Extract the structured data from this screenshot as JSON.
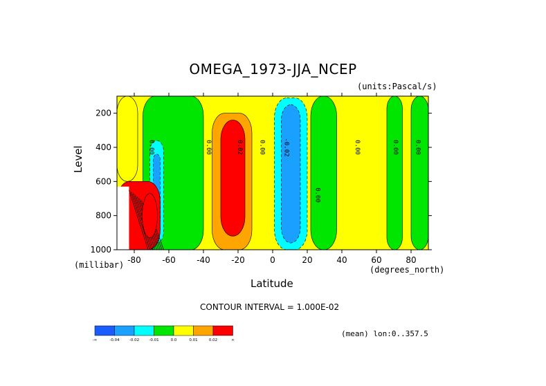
{
  "chart_data": {
    "type": "heatmap",
    "title": "OMEGA_1973-JJA_NCEP",
    "units": "(units:Pascal/s)",
    "ylabel": "Level",
    "yunit": "(millibar)",
    "xlabel": "Latitude",
    "xunit": "(degrees_north)",
    "contour_interval": "CONTOUR INTERVAL = 1.000E-02",
    "mean_note": "(mean) lon:0..357.5",
    "xlim": [
      -90,
      90
    ],
    "ylim": [
      1000,
      100
    ],
    "xticks": [
      -80,
      -60,
      -40,
      -20,
      0,
      20,
      40,
      60,
      80
    ],
    "xtick_labels": [
      "-80",
      "-60",
      "-40",
      "-20",
      "0",
      "20",
      "40",
      "60",
      "80"
    ],
    "yticks": [
      200,
      400,
      600,
      800,
      1000
    ],
    "ytick_labels": [
      "200",
      "400",
      "600",
      "800",
      "1000"
    ],
    "legend": {
      "placement": "bottom",
      "colors": [
        "#1a5cff",
        "#1aa0ff",
        "#00ffff",
        "#00e600",
        "#ffff00",
        "#ffa500",
        "#ff0000"
      ],
      "labels": [
        "-∞",
        "-0.04",
        "-0.02",
        "-0.01",
        "0.0",
        "0.01",
        "0.02",
        "∞"
      ]
    },
    "contour_labels": [
      {
        "text": "0.00",
        "lat": -71,
        "lev": 400
      },
      {
        "text": "0.00",
        "lat": -38,
        "lev": 400
      },
      {
        "text": "0.02",
        "lat": -20,
        "lev": 400
      },
      {
        "text": "0.00",
        "lat": -7,
        "lev": 400
      },
      {
        "text": "-0.02",
        "lat": 7,
        "lev": 400
      },
      {
        "text": "0.00",
        "lat": 25,
        "lev": 680
      },
      {
        "text": "0.00",
        "lat": 48,
        "lev": 400
      },
      {
        "text": "0.00",
        "lat": 70,
        "lev": 400
      },
      {
        "text": "0.00",
        "lat": 83,
        "lev": 400
      }
    ],
    "regions": [
      {
        "color": "#ffff00",
        "desc": "positive 0.0 to 0.01",
        "lat": [
          -90,
          -78
        ],
        "lev": [
          100,
          600
        ]
      },
      {
        "color": "#00e600",
        "desc": "weak negative",
        "lat": [
          -75,
          -40
        ],
        "lev": [
          100,
          1000
        ]
      },
      {
        "color": "#00ffff",
        "desc": "negative",
        "lat": [
          -71,
          -63
        ],
        "lev": [
          360,
          960
        ]
      },
      {
        "color": "#1aa0ff",
        "desc": "negative",
        "lat": [
          -69,
          -65
        ],
        "lev": [
          440,
          860
        ]
      },
      {
        "color": "#ffa500",
        "desc": "positive",
        "lat": [
          -35,
          -12
        ],
        "lev": [
          200,
          1000
        ]
      },
      {
        "color": "#ff0000",
        "desc": "max positive",
        "lat": [
          -30,
          -16
        ],
        "lev": [
          240,
          920
        ]
      },
      {
        "color": "#00ffff",
        "desc": "negative",
        "lat": [
          1,
          20
        ],
        "lev": [
          110,
          1000
        ]
      },
      {
        "color": "#1aa0ff",
        "desc": "min negative",
        "lat": [
          5,
          16
        ],
        "lev": [
          150,
          960
        ]
      },
      {
        "color": "#ff0000",
        "desc": "strong positive near Antarctica",
        "lat": [
          -90,
          -65
        ],
        "lev": [
          600,
          1000
        ]
      },
      {
        "color": "#00e600",
        "desc": "weak negative",
        "lat": [
          22,
          37
        ],
        "lev": [
          100,
          1000
        ]
      },
      {
        "color": "#00e600",
        "desc": "weak negative",
        "lat": [
          66,
          75
        ],
        "lev": [
          100,
          1000
        ]
      },
      {
        "color": "#00e600",
        "desc": "weak negative",
        "lat": [
          80,
          90
        ],
        "lev": [
          100,
          1000
        ]
      }
    ]
  }
}
